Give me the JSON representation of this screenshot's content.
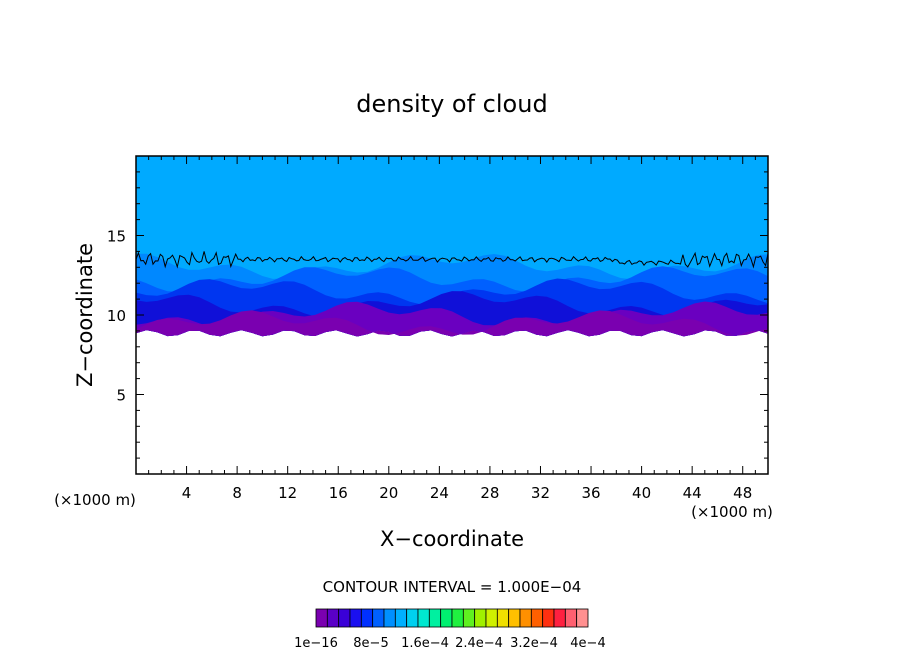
{
  "chart_data": {
    "type": "heatmap",
    "title": "density of cloud",
    "xlabel": "X−coordinate",
    "ylabel": "Z−coordinate",
    "x_unit_left": "(×1000 m)",
    "x_unit_right": "(×1000 m)",
    "xlim": [
      0,
      50
    ],
    "ylim": [
      0,
      20
    ],
    "x_ticks": [
      4,
      8,
      12,
      16,
      20,
      24,
      28,
      32,
      36,
      40,
      44,
      48
    ],
    "y_ticks": [
      5,
      10,
      15
    ],
    "cloud_layer": {
      "base_z": 9.0,
      "top_z": 13.5,
      "fill_to_z": 20,
      "description_colors": "violet base, blue core, light-blue above"
    },
    "contour_line_z": 13.5,
    "contour_interval_text": "CONTOUR INTERVAL = 1.000E−04",
    "colorbar": {
      "labels": [
        "1e−16",
        "8e−5",
        "1.6e−4",
        "2.4e−4",
        "3.2e−4",
        "4e−4"
      ],
      "colors": [
        "#7a00b0",
        "#5a00c8",
        "#3a00d8",
        "#1a10f0",
        "#0030ff",
        "#0060ff",
        "#0090ff",
        "#00b0ff",
        "#00d0f0",
        "#00e8d0",
        "#00f0a0",
        "#00f070",
        "#20f040",
        "#60f020",
        "#a0f000",
        "#d0f000",
        "#f0e000",
        "#ffc000",
        "#ff9000",
        "#ff6000",
        "#ff3010",
        "#ff2040",
        "#ff6070",
        "#ff9090"
      ]
    }
  }
}
